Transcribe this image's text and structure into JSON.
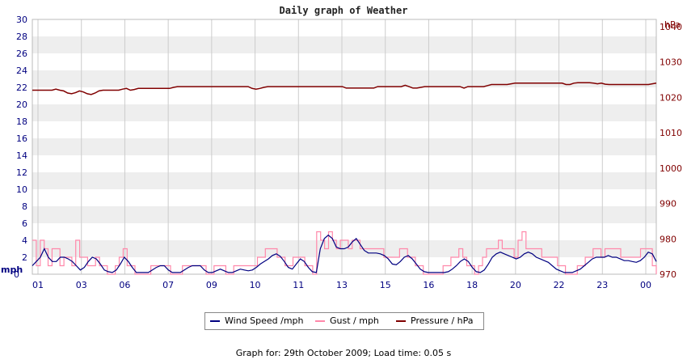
{
  "chart_data": {
    "type": "line",
    "title": "Daily graph of Weather",
    "y_left_label": "mph",
    "y_right_label": "hPa",
    "y_left_ticks": [
      "0",
      "2",
      "4",
      "6",
      "8",
      "10",
      "12",
      "14",
      "16",
      "18",
      "20",
      "22",
      "24",
      "26",
      "28",
      "30"
    ],
    "y_right_ticks": [
      "970",
      "980",
      "990",
      "1000",
      "1010",
      "1020",
      "1030",
      "1040"
    ],
    "x_tick_labels": [
      "01",
      "03",
      "06",
      "07",
      "09",
      "10",
      "11",
      "13",
      "15",
      "16",
      "18",
      "20",
      "22",
      "23",
      "00"
    ],
    "ylim_left": [
      0,
      30
    ],
    "ylim_right": [
      970,
      1042
    ],
    "grid": true,
    "legend_position": "bottom-center",
    "colors": {
      "wind": "#000080",
      "gust": "#ff88aa",
      "pressure": "#800000",
      "left_axis": "#000080",
      "right_axis": "#800000"
    },
    "series": [
      {
        "name": "Wind Speed /mph",
        "values": [
          1,
          1.5,
          2,
          3,
          2,
          1.5,
          1.5,
          2,
          2,
          1.8,
          1.5,
          1,
          0.5,
          0.8,
          1.5,
          2,
          1.8,
          1.2,
          0.5,
          0.3,
          0.2,
          0.5,
          1.2,
          2,
          1.5,
          0.8,
          0.2,
          0.2,
          0.2,
          0.2,
          0.5,
          0.8,
          1,
          1,
          0.5,
          0.2,
          0.2,
          0.2,
          0.5,
          0.8,
          1,
          1,
          1,
          0.5,
          0.2,
          0.2,
          0.4,
          0.6,
          0.4,
          0.2,
          0.2,
          0.4,
          0.6,
          0.5,
          0.4,
          0.5,
          0.8,
          1.2,
          1.5,
          1.8,
          2.2,
          2.4,
          2.1,
          1.5,
          0.8,
          0.6,
          1.2,
          1.8,
          1.5,
          0.8,
          0.3,
          0.2,
          3,
          4.2,
          4.6,
          4.2,
          3.2,
          3,
          3,
          3.2,
          3.8,
          4.2,
          3.5,
          2.8,
          2.5,
          2.5,
          2.5,
          2.4,
          2.2,
          1.8,
          1.2,
          1.1,
          1.5,
          2,
          2.2,
          1.8,
          1.2,
          0.6,
          0.3,
          0.2,
          0.2,
          0.2,
          0.2,
          0.2,
          0.3,
          0.6,
          1,
          1.5,
          1.8,
          1.5,
          0.8,
          0.3,
          0.2,
          0.5,
          1.2,
          2,
          2.4,
          2.6,
          2.4,
          2.2,
          2,
          1.8,
          2,
          2.4,
          2.6,
          2.4,
          2,
          1.8,
          1.6,
          1.4,
          1,
          0.6,
          0.4,
          0.2,
          0.2,
          0.2,
          0.4,
          0.6,
          1,
          1.4,
          1.8,
          2,
          2,
          2,
          2.2,
          2,
          2,
          1.8,
          1.6,
          1.6,
          1.5,
          1.4,
          1.6,
          2,
          2.6,
          2.4,
          1.5
        ]
      },
      {
        "name": "Gust / mph",
        "values": [
          4,
          1,
          4,
          3,
          1,
          3,
          3,
          1,
          2,
          2,
          1,
          4,
          2,
          2,
          1,
          1,
          2,
          1,
          1,
          0,
          0,
          1,
          2,
          3,
          1,
          1,
          0,
          0,
          0,
          0,
          1,
          1,
          1,
          1,
          1,
          0,
          0,
          0,
          1,
          1,
          1,
          1,
          1,
          1,
          0,
          0,
          1,
          1,
          1,
          0,
          0,
          1,
          1,
          1,
          1,
          1,
          1,
          2,
          2,
          3,
          3,
          3,
          2,
          2,
          1,
          1,
          2,
          2,
          2,
          1,
          1,
          0,
          5,
          4,
          3,
          5,
          4,
          3,
          4,
          4,
          3,
          4,
          4,
          3,
          3,
          3,
          3,
          3,
          3,
          2,
          2,
          2,
          2,
          3,
          3,
          2,
          2,
          1,
          1,
          0,
          0,
          0,
          0,
          0,
          1,
          1,
          2,
          2,
          3,
          2,
          1,
          1,
          0,
          1,
          2,
          3,
          3,
          3,
          4,
          3,
          3,
          3,
          2,
          4,
          5,
          3,
          3,
          3,
          3,
          2,
          2,
          2,
          2,
          1,
          1,
          0,
          0,
          0,
          1,
          1,
          2,
          2,
          3,
          3,
          2,
          3,
          3,
          3,
          3,
          2,
          2,
          2,
          2,
          2,
          3,
          3,
          3,
          1,
          0
        ]
      },
      {
        "name": "Pressure / hPa",
        "values": [
          1022,
          1022,
          1022,
          1022,
          1022,
          1022,
          1022.3,
          1022,
          1021.8,
          1021.2,
          1021,
          1021.3,
          1021.8,
          1021.5,
          1021,
          1020.8,
          1021.2,
          1021.8,
          1022,
          1022,
          1022,
          1022,
          1022,
          1022.3,
          1022.5,
          1022,
          1022.2,
          1022.5,
          1022.5,
          1022.5,
          1022.5,
          1022.5,
          1022.5,
          1022.5,
          1022.5,
          1022.5,
          1022.8,
          1023,
          1023,
          1023,
          1023,
          1023,
          1023,
          1023,
          1023,
          1023,
          1023,
          1023,
          1023,
          1023,
          1023,
          1023,
          1023,
          1023,
          1023,
          1023,
          1022.5,
          1022.3,
          1022.5,
          1022.8,
          1023,
          1023,
          1023,
          1023,
          1023,
          1023,
          1023,
          1023,
          1023,
          1023,
          1023,
          1023,
          1023,
          1023,
          1023,
          1023,
          1023,
          1023,
          1023,
          1023,
          1022.6,
          1022.6,
          1022.6,
          1022.6,
          1022.6,
          1022.6,
          1022.6,
          1022.6,
          1023,
          1023,
          1023,
          1023,
          1023,
          1023,
          1023,
          1023.4,
          1023,
          1022.6,
          1022.6,
          1022.8,
          1023,
          1023,
          1023,
          1023,
          1023,
          1023,
          1023,
          1023,
          1023,
          1023,
          1022.6,
          1023,
          1023,
          1023,
          1023,
          1023,
          1023.3,
          1023.6,
          1023.6,
          1023.6,
          1023.6,
          1023.6,
          1023.8,
          1024,
          1024,
          1024,
          1024,
          1024,
          1024,
          1024,
          1024,
          1024,
          1024,
          1024,
          1024,
          1024,
          1023.6,
          1023.6,
          1024,
          1024.1,
          1024.1,
          1024.1,
          1024.1,
          1024,
          1023.8,
          1024,
          1023.7,
          1023.6,
          1023.6,
          1023.6,
          1023.6,
          1023.6,
          1023.6,
          1023.6,
          1023.6,
          1023.6,
          1023.6,
          1023.6,
          1023.8,
          1024
        ]
      }
    ]
  },
  "footer": "Graph for: 29th October 2009; Load time: 0.05 s"
}
